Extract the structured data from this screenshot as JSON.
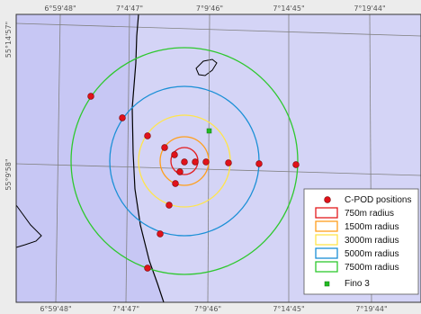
{
  "colors": {
    "sea": "#d4d4f6",
    "land": "#c7c7f4",
    "grid": "#7d7d7d",
    "coast": "#000000",
    "frame_bg": "#ececec",
    "cpod": "#e0121a",
    "fino": "#22bb22"
  },
  "top_labels": [
    "6°59'48\"",
    "7°4'47\"",
    "7°9'46\"",
    "7°14'45\"",
    "7°19'44\""
  ],
  "bottom_labels": [
    "6°59'48\"",
    "7°4'47\"",
    "7°9'46\"",
    "7°14'45\"",
    "7°19'44\""
  ],
  "left_labels": [
    "55°14'57\"",
    "55°9'58\""
  ],
  "rings": [
    {
      "label": "750m radius",
      "color": "#e31a1c"
    },
    {
      "label": "1500m radius",
      "color": "#ff9f1c"
    },
    {
      "label": "3000m radius",
      "color": "#ffe54c"
    },
    {
      "label": "5000m radius",
      "color": "#1a8fd6"
    },
    {
      "label": "7500m radius",
      "color": "#2ec82e"
    }
  ],
  "legend": {
    "cpod": "C-POD positions",
    "fino": "Fino 3"
  }
}
